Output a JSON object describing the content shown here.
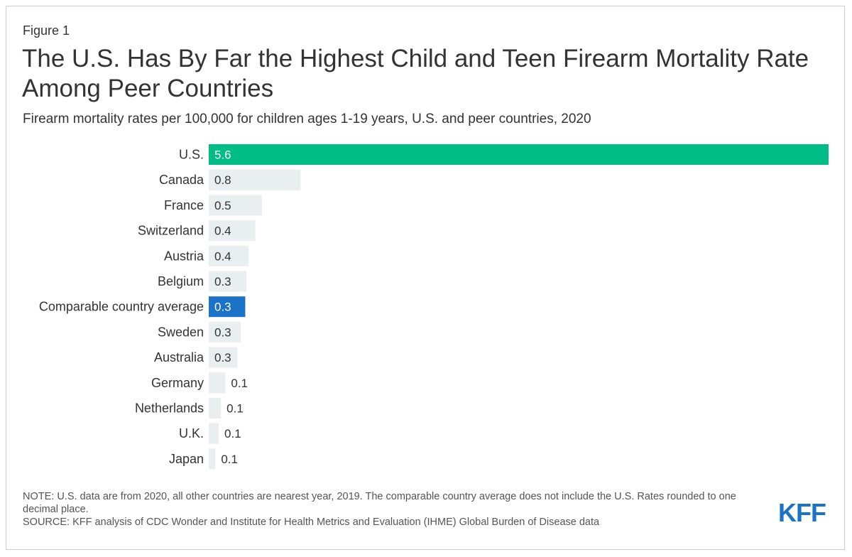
{
  "figure_label": "Figure 1",
  "title": "The U.S. Has By Far the Highest Child and Teen Firearm Mortality Rate Among Peer Countries",
  "subtitle": "Firearm mortality rates per 100,000 for children ages 1-19 years, U.S. and peer countries, 2020",
  "chart_data": {
    "type": "bar",
    "orientation": "horizontal",
    "title": "The U.S. Has By Far the Highest Child and Teen Firearm Mortality Rate Among Peer Countries",
    "subtitle": "Firearm mortality rates per 100,000 for children ages 1-19 years, U.S. and peer countries, 2020",
    "categories": [
      "U.S.",
      "Canada",
      "France",
      "Switzerland",
      "Austria",
      "Belgium",
      "Comparable country average",
      "Sweden",
      "Australia",
      "Germany",
      "Netherlands",
      "U.K.",
      "Japan"
    ],
    "values": [
      5.6,
      0.83,
      0.48,
      0.42,
      0.36,
      0.34,
      0.33,
      0.29,
      0.26,
      0.15,
      0.11,
      0.09,
      0.06
    ],
    "labels": [
      "5.6",
      "0.8",
      "0.5",
      "0.4",
      "0.4",
      "0.3",
      "0.3",
      "0.3",
      "0.3",
      "0.1",
      "0.1",
      "0.1",
      "0.1"
    ],
    "colors": [
      "#00bd86",
      "#e9eef1",
      "#e9eef1",
      "#e9eef1",
      "#e9eef1",
      "#e9eef1",
      "#1a73c8",
      "#e9eef1",
      "#e9eef1",
      "#e9eef1",
      "#e9eef1",
      "#e9eef1",
      "#e9eef1"
    ],
    "label_colors": [
      "#ffffff",
      "#333333",
      "#333333",
      "#333333",
      "#333333",
      "#333333",
      "#ffffff",
      "#333333",
      "#333333",
      "#333333",
      "#333333",
      "#333333",
      "#333333"
    ],
    "xlim": [
      0,
      5.6
    ],
    "grid": false,
    "legend": "none"
  },
  "notes": {
    "note": "NOTE: U.S. data are from 2020, all other countries are nearest year, 2019. The comparable country average does not include the U.S. Rates rounded to one decimal place.",
    "source": "SOURCE: KFF analysis of CDC Wonder and Institute for Health Metrics and Evaluation (IHME) Global Burden of Disease data"
  },
  "logo": "KFF"
}
